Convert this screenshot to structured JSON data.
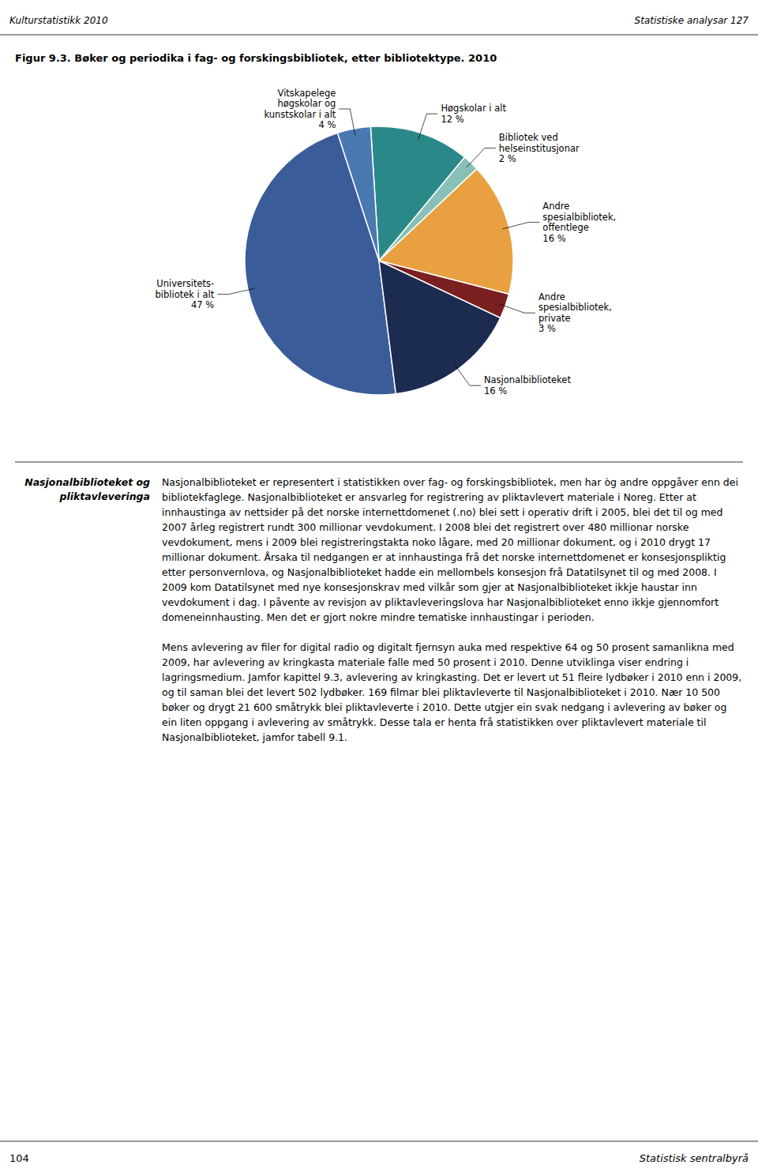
{
  "chart_data": {
    "type": "pie",
    "title": "Figur 9.3. Bøker og periodika i fag- og forskingsbibliotek, etter bibliotektype. 2010",
    "categories": [
      "Universitets-\nbibliotek i alt",
      "Nasjonalbiblioteket",
      "Andre\nspesialbibliotek,\nprivate",
      "Andre\nspesialbibliotek,\noffentlege",
      "Bibliotek ved\nhelseinstitusjonar",
      "Høgskolar i alt",
      "Vitskapelege\nhøgskolar og\nkunstskolar i alt"
    ],
    "values": [
      47,
      16,
      3,
      16,
      2,
      12,
      4
    ],
    "value_labels": [
      "47 %",
      "16 %",
      "3 %",
      "16 %",
      "2 %",
      "12 %",
      "4 %"
    ],
    "colors": [
      "#3a5c99",
      "#1c2b50",
      "#7a2020",
      "#e8a040",
      "#88c0b8",
      "#2a8888",
      "#4a78b0"
    ],
    "data_labels": true
  },
  "page": {
    "header_left": "Kulturstatistikk 2010",
    "header_right": "Statistiske analysar 127",
    "body_heading": "Nasjonalbiblioteket og\npliktavleveringa",
    "body_paragraphs": [
      "Nasjonalbiblioteket er representert i statistikken over fag- og forskingsbibliotek, men har òg andre oppgåver enn dei bibliotekfaglege. Nasjonalbiblioteket er ansvarleg for registrering av pliktavlevert materiale i Noreg. Etter at innhaustinga av nettsider på det norske internettdomenet (.no) blei sett i operativ drift i 2005, blei det til og med 2007 årleg registrert rundt 300 millionar vevdokument. I 2008 blei det registrert over 480 millionar norske vevdokument, mens i 2009 blei registreringstakta noko lågare, med 20 millionar dokument, og i 2010 drygt 17 millionar dokument. Årsaka til nedgangen er at innhaustinga frå det norske internettdomenet er konsesjonspliktig etter personvernlova, og Nasjonalbiblioteket hadde ein mellombels konsesjon frå Datatilsynet til og med 2008. I 2009 kom Datatilsynet med nye konsesjonskrav med vilkår som gjer at Nasjonalbiblioteket ikkje haustar inn vevdokument i dag. I påvente av revisjon av pliktavleveringslova har Nasjonalbiblioteket enno ikkje gjennomfort domeneinnhausting. Men det er gjort nokre mindre tematiske innhaustingar i perioden.",
      "Mens avlevering av filer for digital radio og digitalt fjernsyn auka med respektive 64 og 50 prosent samanlikna med 2009, har avlevering av kringkasta materiale falle med 50 prosent i 2010. Denne utviklinga viser endring i lagringsmedium. Jamfor kapittel 9.3, avlevering av kringkasting. Det er levert ut 51 fleire lydbøker i 2010 enn i 2009, og til saman blei det levert 502 lydbøker. 169 filmar blei pliktavleverte til Nasjonalbiblioteket i 2010. Nær 10 500 bøker og drygt 21 600 småtrykk blei pliktavleverte i 2010. Dette utgjer ein svak nedgang i avlevering av bøker og ein liten oppgang i avlevering av småtrykk. Desse tala er henta frå statistikken over pliktavlevert materiale til Nasjonalbiblioteket, jamfor tabell 9.1."
    ],
    "footer_left": "104",
    "footer_right": "Statistisk sentralbyrå"
  }
}
